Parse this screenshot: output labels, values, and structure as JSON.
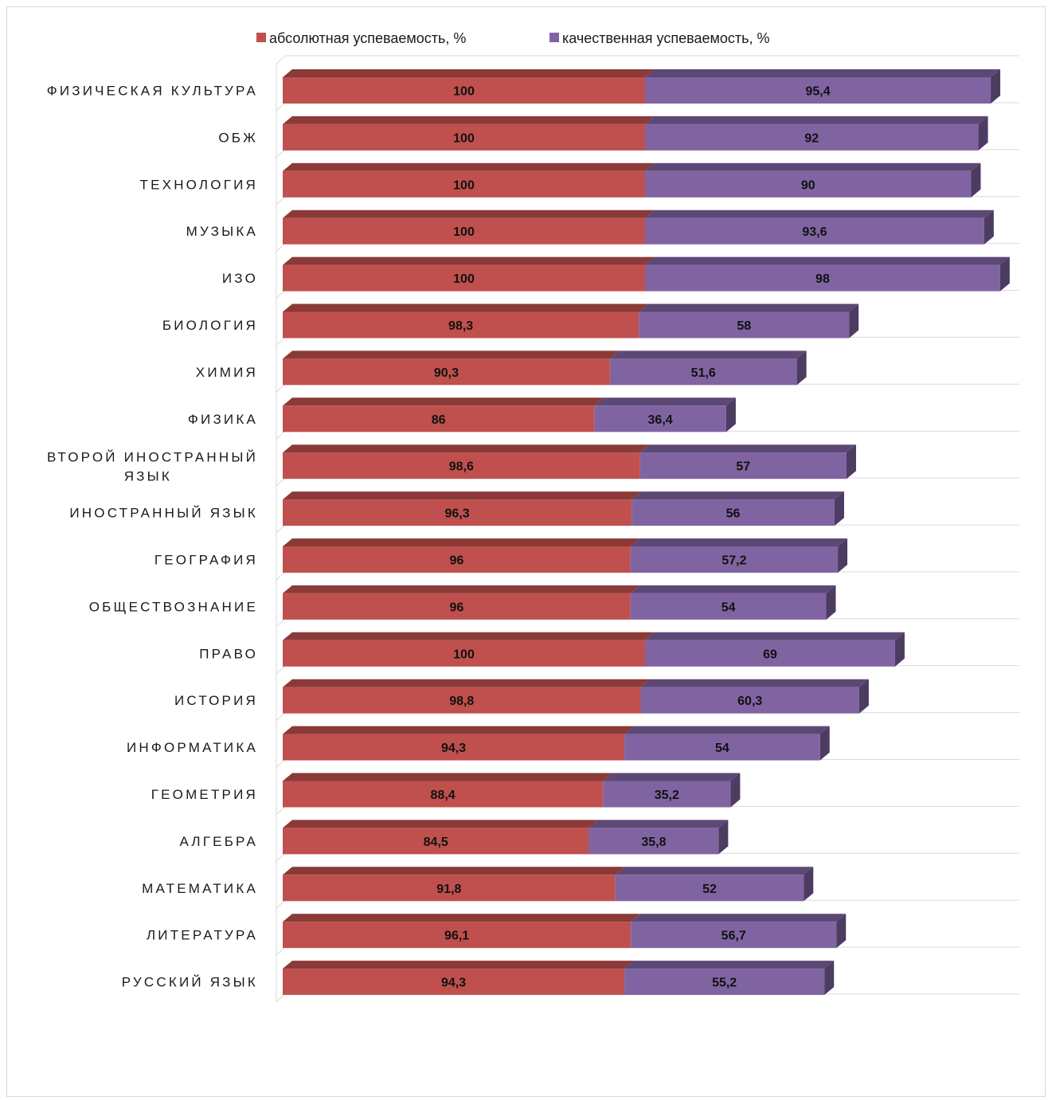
{
  "chart_data": {
    "type": "bar",
    "orientation": "horizontal",
    "stacked": true,
    "three_d": true,
    "legend_position": "top",
    "grid": true,
    "categories": [
      "ФИЗИЧЕСКАЯ КУЛЬТУРА",
      "ОБЖ",
      "ТЕХНОЛОГИЯ",
      "МУЗЫКА",
      "ИЗО",
      "БИОЛОГИЯ",
      "ХИМИЯ",
      "ФИЗИКА",
      "ВТОРОЙ ИНОСТРАННЫЙ ЯЗЫК",
      "ИНОСТРАННЫЙ ЯЗЫК",
      "ГЕОГРАФИЯ",
      "ОБЩЕСТВОЗНАНИЕ",
      "ПРАВО",
      "ИСТОРИЯ",
      "ИНФОРМАТИКА",
      "ГЕОМЕТРИЯ",
      "АЛГЕБРА",
      "МАТЕМАТИКА",
      "ЛИТЕРАТУРА",
      "РУССКИЙ ЯЗЫК"
    ],
    "category_lines": [
      [
        "ФИЗИЧЕСКАЯ КУЛЬТУРА"
      ],
      [
        "ОБЖ"
      ],
      [
        "ТЕХНОЛОГИЯ"
      ],
      [
        "МУЗЫКА"
      ],
      [
        "ИЗО"
      ],
      [
        "БИОЛОГИЯ"
      ],
      [
        "ХИМИЯ"
      ],
      [
        "ФИЗИКА"
      ],
      [
        "ВТОРОЙ ИНОСТРАННЫЙ",
        "ЯЗЫК"
      ],
      [
        "ИНОСТРАННЫЙ ЯЗЫК"
      ],
      [
        "ГЕОГРАФИЯ"
      ],
      [
        "ОБЩЕСТВОЗНАНИЕ"
      ],
      [
        "ПРАВО"
      ],
      [
        "ИСТОРИЯ"
      ],
      [
        "ИНФОРМАТИКА"
      ],
      [
        "ГЕОМЕТРИЯ"
      ],
      [
        "АЛГЕБРА"
      ],
      [
        "МАТЕМАТИКА"
      ],
      [
        "ЛИТЕРАТУРА"
      ],
      [
        "РУССКИЙ ЯЗЫК"
      ]
    ],
    "series": [
      {
        "name": "абсолютная успеваемость, %",
        "color": "#c0504d",
        "values": [
          100,
          100,
          100,
          100,
          100,
          98.3,
          90.3,
          86,
          98.6,
          96.3,
          96,
          96,
          100,
          98.8,
          94.3,
          88.4,
          84.5,
          91.8,
          96.1,
          94.3
        ],
        "labels": [
          "100",
          "100",
          "100",
          "100",
          "100",
          "98,3",
          "90,3",
          "86",
          "98,6",
          "96,3",
          "96",
          "96",
          "100",
          "98,8",
          "94,3",
          "88,4",
          "84,5",
          "91,8",
          "96,1",
          "94,3"
        ]
      },
      {
        "name": "качественная успеваемость, %",
        "color": "#8064a2",
        "values": [
          95.4,
          92,
          90,
          93.6,
          98,
          58,
          51.6,
          36.4,
          57,
          56,
          57.2,
          54,
          69,
          60.3,
          54,
          35.2,
          35.8,
          52,
          56.7,
          55.2
        ],
        "labels": [
          "95,4",
          "92",
          "90",
          "93,6",
          "98",
          "58",
          "51,6",
          "36,4",
          "57",
          "56",
          "57,2",
          "54",
          "69",
          "60,3",
          "54",
          "35,2",
          "35,8",
          "52",
          "56,7",
          "55,2"
        ]
      }
    ],
    "xlim": [
      0,
      200
    ]
  }
}
